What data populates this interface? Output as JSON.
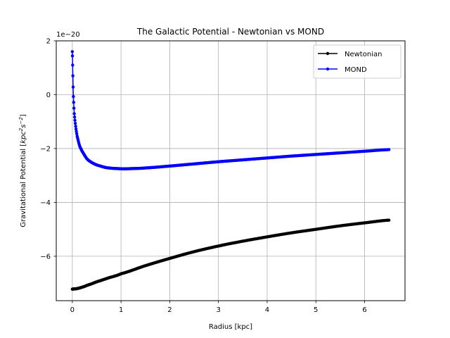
{
  "chart_data": {
    "type": "line",
    "title": "The Galactic Potential - Newtonian vs MOND",
    "xlabel": "Radius [kpc]",
    "ylabel_prefix": "Gravitational Potential [",
    "ylabel_unit_base": "kpc",
    "ylabel_unit_exp1": "2",
    "ylabel_unit_s": "s",
    "ylabel_unit_exp2": "−2",
    "ylabel_suffix": "]",
    "offset_text": "1e−20",
    "xlim": [
      -0.33,
      6.83
    ],
    "ylim": [
      -7.65,
      2.0
    ],
    "xticks": [
      0,
      1,
      2,
      3,
      4,
      5,
      6
    ],
    "yticks": [
      -6,
      -4,
      -2,
      0,
      2
    ],
    "xtick_labels": [
      "0",
      "1",
      "2",
      "3",
      "4",
      "5",
      "6"
    ],
    "ytick_labels": [
      "−6",
      "−4",
      "−2",
      "0",
      "2"
    ],
    "grid": true,
    "legend_position": "top-right",
    "series": [
      {
        "name": "Newtonian",
        "color": "#000000",
        "x": [
          0.0,
          0.1,
          0.2,
          0.3,
          0.5,
          0.75,
          1.0,
          1.5,
          2.0,
          2.5,
          3.0,
          3.5,
          4.0,
          4.5,
          5.0,
          5.5,
          6.0,
          6.5
        ],
        "y": [
          -7.22,
          -7.2,
          -7.15,
          -7.08,
          -6.95,
          -6.8,
          -6.65,
          -6.35,
          -6.08,
          -5.83,
          -5.62,
          -5.44,
          -5.28,
          -5.13,
          -5.0,
          -4.87,
          -4.76,
          -4.66
        ]
      },
      {
        "name": "MOND",
        "color": "#0000ff",
        "x": [
          0.0,
          0.01,
          0.02,
          0.04,
          0.07,
          0.1,
          0.15,
          0.2,
          0.3,
          0.4,
          0.5,
          0.7,
          1.0,
          1.3,
          1.5,
          2.0,
          2.5,
          3.0,
          3.5,
          4.0,
          4.5,
          5.0,
          5.5,
          6.0,
          6.5
        ],
        "y": [
          1.6,
          0.8,
          0.0,
          -0.7,
          -1.2,
          -1.55,
          -1.9,
          -2.1,
          -2.38,
          -2.52,
          -2.61,
          -2.71,
          -2.75,
          -2.74,
          -2.72,
          -2.65,
          -2.57,
          -2.49,
          -2.42,
          -2.35,
          -2.28,
          -2.22,
          -2.16,
          -2.1,
          -2.04
        ]
      }
    ]
  }
}
